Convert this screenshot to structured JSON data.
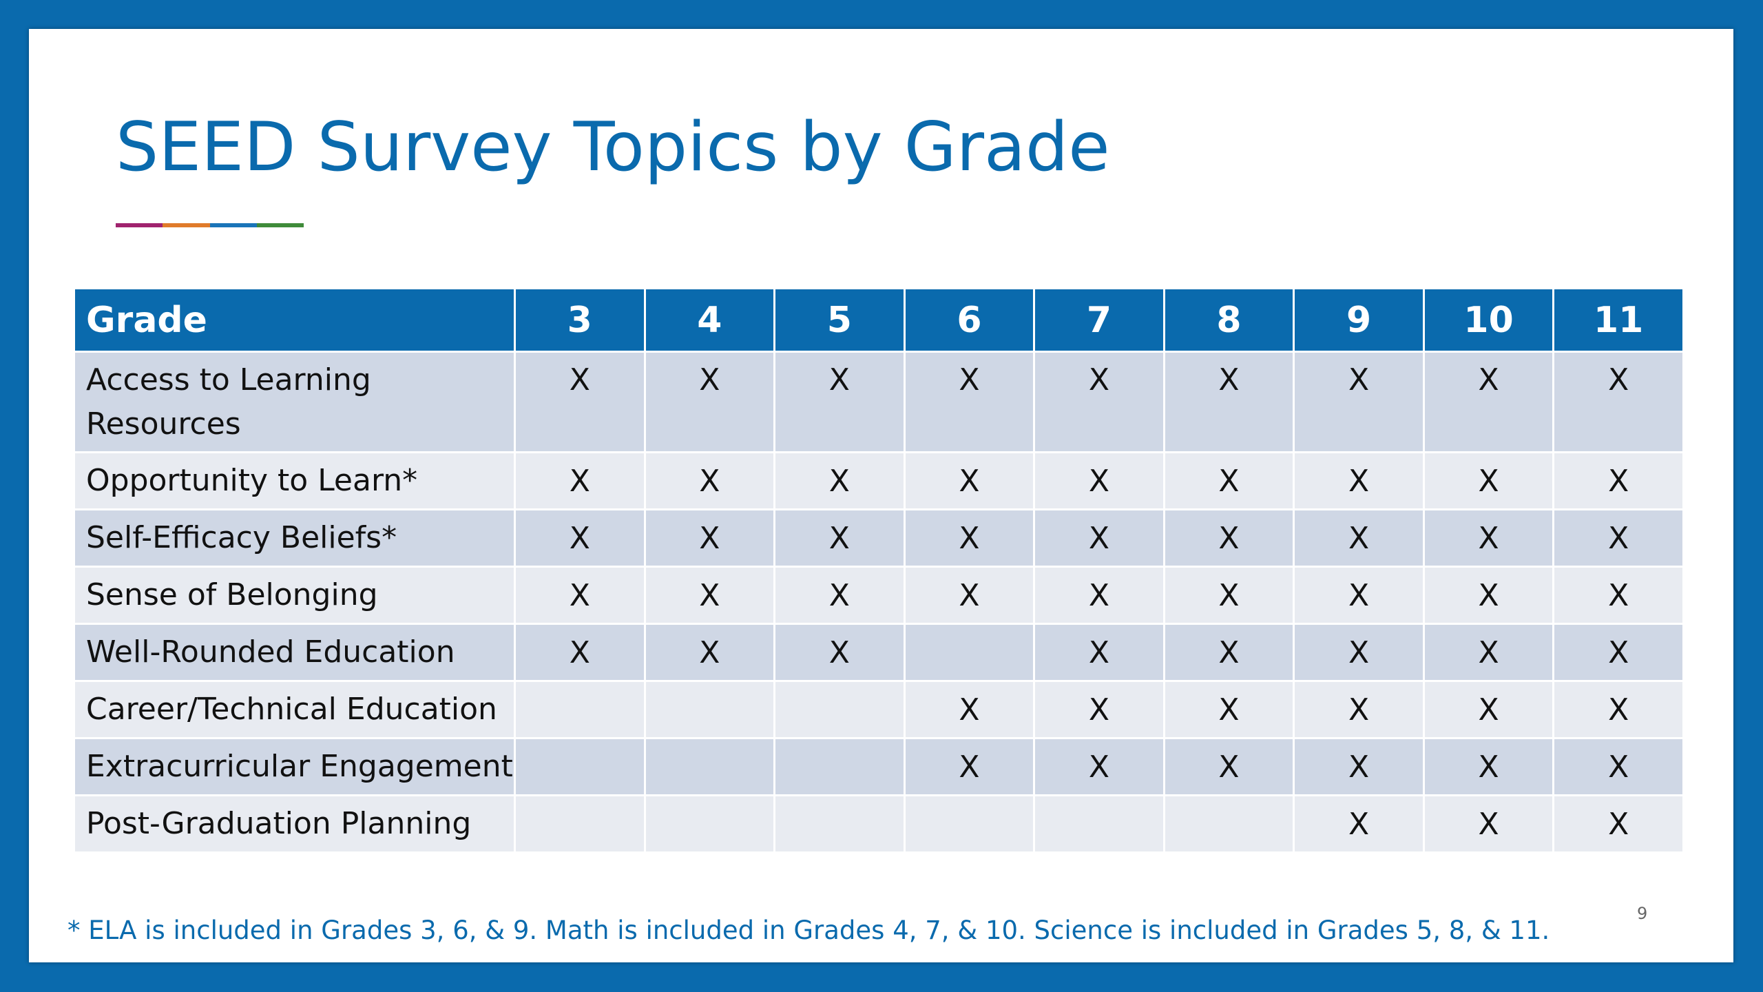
{
  "title": "SEED Survey Topics by Grade",
  "accent_colors": [
    "#a0236e",
    "#e07b2a",
    "#1a74b8",
    "#3f8b3a"
  ],
  "table": {
    "header_label": "Grade",
    "grades": [
      "3",
      "4",
      "5",
      "6",
      "7",
      "8",
      "9",
      "10",
      "11"
    ],
    "rows": [
      {
        "topic": "Access to Learning Resources",
        "marks": [
          "X",
          "X",
          "X",
          "X",
          "X",
          "X",
          "X",
          "X",
          "X"
        ]
      },
      {
        "topic": "Opportunity to Learn*",
        "marks": [
          "X",
          "X",
          "X",
          "X",
          "X",
          "X",
          "X",
          "X",
          "X"
        ]
      },
      {
        "topic": "Self-Efficacy Beliefs*",
        "marks": [
          "X",
          "X",
          "X",
          "X",
          "X",
          "X",
          "X",
          "X",
          "X"
        ]
      },
      {
        "topic": "Sense of Belonging",
        "marks": [
          "X",
          "X",
          "X",
          "X",
          "X",
          "X",
          "X",
          "X",
          "X"
        ]
      },
      {
        "topic": "Well-Rounded Education",
        "marks": [
          "X",
          "X",
          "X",
          "",
          "X",
          "X",
          "X",
          "X",
          "X"
        ]
      },
      {
        "topic": "Career/Technical Education",
        "marks": [
          "",
          "",
          "",
          "X",
          "X",
          "X",
          "X",
          "X",
          "X"
        ]
      },
      {
        "topic": "Extracurricular Engagement",
        "marks": [
          "",
          "",
          "",
          "X",
          "X",
          "X",
          "X",
          "X",
          "X"
        ]
      },
      {
        "topic": "Post-Graduation Planning",
        "marks": [
          "",
          "",
          "",
          "",
          "",
          "",
          "X",
          "X",
          "X"
        ]
      }
    ]
  },
  "footnote": "* ELA is included in Grades 3, 6, & 9. Math is included in Grades 4, 7, & 10. Science is included in Grades 5, 8, & 11.",
  "page_number": "9"
}
